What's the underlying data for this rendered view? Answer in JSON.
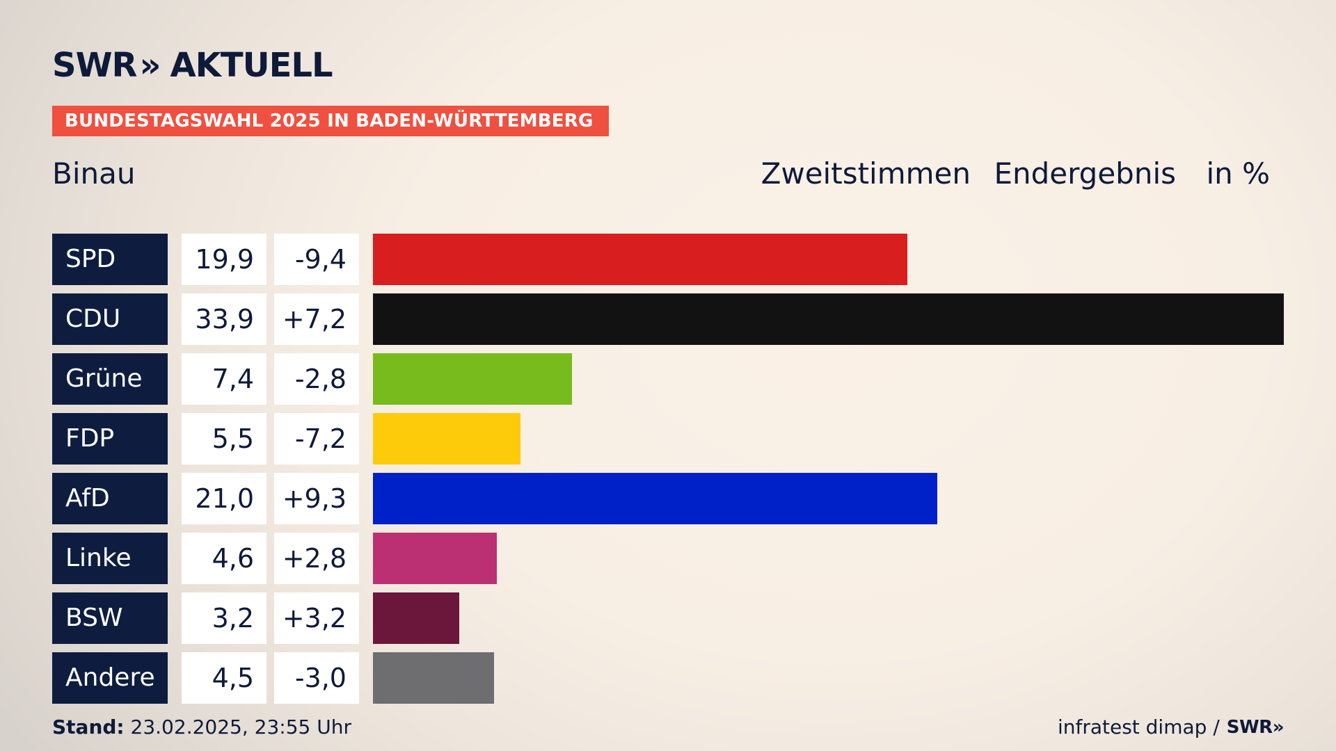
{
  "brand": {
    "logo_text": "SWR",
    "logo_chevron": "»",
    "logo_suffix": "AKTUELL"
  },
  "banner": "BUNDESTAGSWAHL 2025 IN BADEN-WÜRTTEMBERG",
  "region": "Binau",
  "header": {
    "vote_type": "Zweitstimmen",
    "status": "Endergebnis",
    "unit": "in %"
  },
  "chart_data": {
    "type": "bar",
    "orientation": "horizontal",
    "categories": [
      "SPD",
      "CDU",
      "Grüne",
      "FDP",
      "AfD",
      "Linke",
      "BSW",
      "Andere"
    ],
    "values": [
      19.9,
      33.9,
      7.4,
      5.5,
      21.0,
      4.6,
      3.2,
      4.5
    ],
    "value_labels": [
      "19,9",
      "33,9",
      "7,4",
      "5,5",
      "21,0",
      "4,6",
      "3,2",
      "4,5"
    ],
    "change_labels": [
      "-9,4",
      "+7,2",
      "-2,8",
      "-7,2",
      "+9,3",
      "+2,8",
      "+3,2",
      "-3,0"
    ],
    "changes": [
      -9.4,
      7.2,
      -2.8,
      -7.2,
      9.3,
      2.8,
      3.2,
      -3.0
    ],
    "colors": [
      "#d81e1e",
      "#121212",
      "#78bb1c",
      "#fecb0a",
      "#0021c7",
      "#bb3073",
      "#6b163b",
      "#6e6e70"
    ],
    "xlim": [
      0,
      33.9
    ],
    "grid": false
  },
  "footer": {
    "stand_label": "Stand:",
    "stand_value": "23.02.2025, 23:55 Uhr",
    "source": "infratest dimap /",
    "source_logo": "SWR»"
  }
}
